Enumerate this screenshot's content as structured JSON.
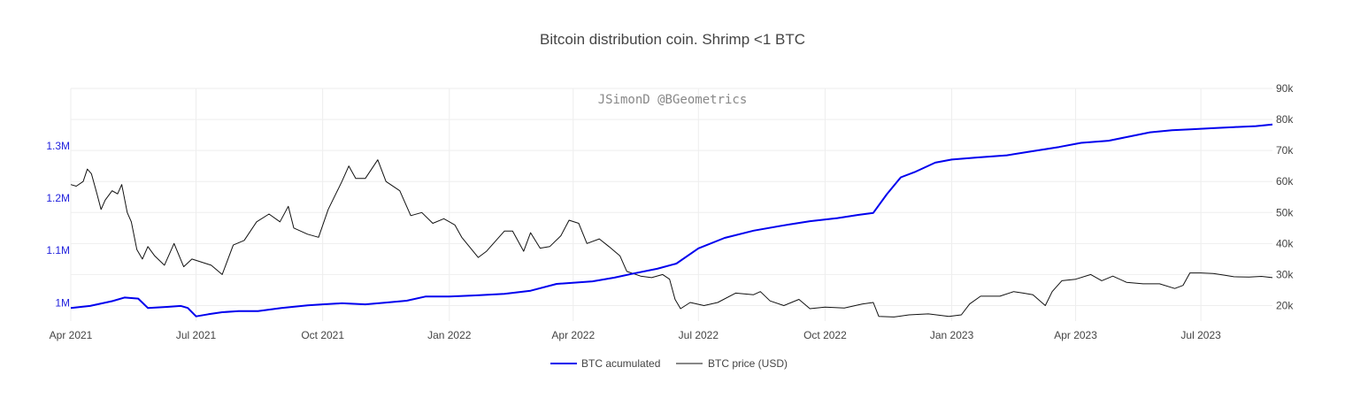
{
  "chart_data": {
    "type": "line",
    "title": "Bitcoin distribution coin. Shrimp <1 BTC",
    "watermark": "JSimonD @BGeometrics",
    "x_range": [
      "2021-04-01",
      "2023-08-22"
    ],
    "x_ticks": [
      {
        "date": "2021-04-01",
        "label": "Apr 2021"
      },
      {
        "date": "2021-07-01",
        "label": "Jul 2021"
      },
      {
        "date": "2021-10-01",
        "label": "Oct 2021"
      },
      {
        "date": "2022-01-01",
        "label": "Jan 2022"
      },
      {
        "date": "2022-04-01",
        "label": "Apr 2022"
      },
      {
        "date": "2022-07-01",
        "label": "Jul 2022"
      },
      {
        "date": "2022-10-01",
        "label": "Oct 2022"
      },
      {
        "date": "2023-01-01",
        "label": "Jan 2023"
      },
      {
        "date": "2023-04-01",
        "label": "Apr 2023"
      },
      {
        "date": "2023-07-01",
        "label": "Jul 2023"
      }
    ],
    "y_left": {
      "range": [
        965000,
        1410000
      ],
      "ticks": [
        {
          "value": 1000000,
          "label": "1M"
        },
        {
          "value": 1100000,
          "label": "1.1M"
        },
        {
          "value": 1200000,
          "label": "1.2M"
        },
        {
          "value": 1300000,
          "label": "1.3M"
        }
      ]
    },
    "y_right": {
      "range": [
        15000,
        90000
      ],
      "ticks": [
        {
          "value": 20000,
          "label": "20k"
        },
        {
          "value": 30000,
          "label": "30k"
        },
        {
          "value": 40000,
          "label": "40k"
        },
        {
          "value": 50000,
          "label": "50k"
        },
        {
          "value": 60000,
          "label": "60k"
        },
        {
          "value": 70000,
          "label": "70k"
        },
        {
          "value": 80000,
          "label": "80k"
        },
        {
          "value": 90000,
          "label": "90k"
        }
      ]
    },
    "grid": true,
    "legend_position": "bottom-center",
    "series": [
      {
        "name": "BTC acumulated",
        "axis": "left",
        "color": "#0000ee",
        "points": [
          [
            "2021-04-01",
            990000
          ],
          [
            "2021-04-15",
            994000
          ],
          [
            "2021-05-01",
            1003000
          ],
          [
            "2021-05-10",
            1010000
          ],
          [
            "2021-05-20",
            1008000
          ],
          [
            "2021-05-27",
            990000
          ],
          [
            "2021-06-10",
            992000
          ],
          [
            "2021-06-20",
            994000
          ],
          [
            "2021-06-25",
            990000
          ],
          [
            "2021-07-01",
            974000
          ],
          [
            "2021-07-10",
            978000
          ],
          [
            "2021-07-20",
            982000
          ],
          [
            "2021-08-01",
            984000
          ],
          [
            "2021-08-15",
            984000
          ],
          [
            "2021-09-01",
            990000
          ],
          [
            "2021-09-20",
            995000
          ],
          [
            "2021-10-01",
            997000
          ],
          [
            "2021-10-15",
            999000
          ],
          [
            "2021-11-01",
            997000
          ],
          [
            "2021-11-15",
            1000000
          ],
          [
            "2021-12-01",
            1004000
          ],
          [
            "2021-12-15",
            1012000
          ],
          [
            "2022-01-01",
            1012000
          ],
          [
            "2022-01-20",
            1014000
          ],
          [
            "2022-02-10",
            1017000
          ],
          [
            "2022-03-01",
            1023000
          ],
          [
            "2022-03-20",
            1036000
          ],
          [
            "2022-04-15",
            1041000
          ],
          [
            "2022-05-01",
            1048000
          ],
          [
            "2022-05-15",
            1056000
          ],
          [
            "2022-06-01",
            1065000
          ],
          [
            "2022-06-15",
            1075000
          ],
          [
            "2022-07-01",
            1104000
          ],
          [
            "2022-07-20",
            1124000
          ],
          [
            "2022-08-10",
            1138000
          ],
          [
            "2022-09-01",
            1148000
          ],
          [
            "2022-09-20",
            1156000
          ],
          [
            "2022-10-10",
            1162000
          ],
          [
            "2022-10-25",
            1168000
          ],
          [
            "2022-11-05",
            1172000
          ],
          [
            "2022-11-15",
            1208000
          ],
          [
            "2022-11-25",
            1240000
          ],
          [
            "2022-12-05",
            1250000
          ],
          [
            "2022-12-20",
            1268000
          ],
          [
            "2023-01-01",
            1274000
          ],
          [
            "2023-01-20",
            1278000
          ],
          [
            "2023-02-10",
            1282000
          ],
          [
            "2023-03-01",
            1290000
          ],
          [
            "2023-03-20",
            1298000
          ],
          [
            "2023-04-05",
            1306000
          ],
          [
            "2023-04-25",
            1310000
          ],
          [
            "2023-05-10",
            1318000
          ],
          [
            "2023-05-25",
            1326000
          ],
          [
            "2023-06-10",
            1330000
          ],
          [
            "2023-06-25",
            1332000
          ],
          [
            "2023-07-10",
            1334000
          ],
          [
            "2023-07-25",
            1336000
          ],
          [
            "2023-08-10",
            1338000
          ],
          [
            "2023-08-22",
            1341000
          ]
        ]
      },
      {
        "name": "BTC price (USD)",
        "axis": "right",
        "color": "#111111",
        "points": [
          [
            "2021-04-01",
            59000
          ],
          [
            "2021-04-05",
            58500
          ],
          [
            "2021-04-10",
            60000
          ],
          [
            "2021-04-13",
            64000
          ],
          [
            "2021-04-16",
            62500
          ],
          [
            "2021-04-20",
            56000
          ],
          [
            "2021-04-23",
            51000
          ],
          [
            "2021-04-26",
            54000
          ],
          [
            "2021-05-01",
            57000
          ],
          [
            "2021-05-05",
            56000
          ],
          [
            "2021-05-08",
            59000
          ],
          [
            "2021-05-12",
            50000
          ],
          [
            "2021-05-15",
            47000
          ],
          [
            "2021-05-19",
            38000
          ],
          [
            "2021-05-23",
            35000
          ],
          [
            "2021-05-27",
            39000
          ],
          [
            "2021-06-01",
            36000
          ],
          [
            "2021-06-08",
            33000
          ],
          [
            "2021-06-15",
            40000
          ],
          [
            "2021-06-22",
            32500
          ],
          [
            "2021-06-28",
            35000
          ],
          [
            "2021-07-05",
            34000
          ],
          [
            "2021-07-12",
            33000
          ],
          [
            "2021-07-20",
            30000
          ],
          [
            "2021-07-28",
            39500
          ],
          [
            "2021-08-05",
            41000
          ],
          [
            "2021-08-14",
            47000
          ],
          [
            "2021-08-23",
            49500
          ],
          [
            "2021-08-31",
            47000
          ],
          [
            "2021-09-06",
            52000
          ],
          [
            "2021-09-10",
            45000
          ],
          [
            "2021-09-20",
            43000
          ],
          [
            "2021-09-28",
            42000
          ],
          [
            "2021-10-05",
            51000
          ],
          [
            "2021-10-15",
            60000
          ],
          [
            "2021-10-20",
            65000
          ],
          [
            "2021-10-25",
            61000
          ],
          [
            "2021-11-01",
            61000
          ],
          [
            "2021-11-10",
            67000
          ],
          [
            "2021-11-16",
            60000
          ],
          [
            "2021-11-26",
            57000
          ],
          [
            "2021-12-04",
            49000
          ],
          [
            "2021-12-12",
            50000
          ],
          [
            "2021-12-20",
            46500
          ],
          [
            "2021-12-28",
            48000
          ],
          [
            "2022-01-05",
            46000
          ],
          [
            "2022-01-10",
            42000
          ],
          [
            "2022-01-22",
            35500
          ],
          [
            "2022-01-28",
            37500
          ],
          [
            "2022-02-10",
            44000
          ],
          [
            "2022-02-16",
            44000
          ],
          [
            "2022-02-24",
            37500
          ],
          [
            "2022-03-01",
            43500
          ],
          [
            "2022-03-08",
            38500
          ],
          [
            "2022-03-15",
            39000
          ],
          [
            "2022-03-23",
            42500
          ],
          [
            "2022-03-29",
            47500
          ],
          [
            "2022-04-05",
            46500
          ],
          [
            "2022-04-11",
            40000
          ],
          [
            "2022-04-20",
            41500
          ],
          [
            "2022-04-27",
            39000
          ],
          [
            "2022-05-05",
            36000
          ],
          [
            "2022-05-10",
            31000
          ],
          [
            "2022-05-20",
            29500
          ],
          [
            "2022-05-28",
            29000
          ],
          [
            "2022-06-05",
            30000
          ],
          [
            "2022-06-10",
            28500
          ],
          [
            "2022-06-14",
            22000
          ],
          [
            "2022-06-18",
            19000
          ],
          [
            "2022-06-25",
            21000
          ],
          [
            "2022-07-05",
            20000
          ],
          [
            "2022-07-15",
            21000
          ],
          [
            "2022-07-28",
            24000
          ],
          [
            "2022-08-10",
            23500
          ],
          [
            "2022-08-15",
            24500
          ],
          [
            "2022-08-22",
            21500
          ],
          [
            "2022-09-01",
            20000
          ],
          [
            "2022-09-12",
            22000
          ],
          [
            "2022-09-20",
            19000
          ],
          [
            "2022-10-01",
            19500
          ],
          [
            "2022-10-15",
            19200
          ],
          [
            "2022-10-28",
            20500
          ],
          [
            "2022-11-05",
            21000
          ],
          [
            "2022-11-09",
            16500
          ],
          [
            "2022-11-20",
            16300
          ],
          [
            "2022-12-01",
            17000
          ],
          [
            "2022-12-15",
            17300
          ],
          [
            "2022-12-30",
            16500
          ],
          [
            "2023-01-08",
            17000
          ],
          [
            "2023-01-14",
            20500
          ],
          [
            "2023-01-22",
            23000
          ],
          [
            "2023-02-05",
            23000
          ],
          [
            "2023-02-15",
            24500
          ],
          [
            "2023-02-22",
            24000
          ],
          [
            "2023-03-01",
            23500
          ],
          [
            "2023-03-10",
            20000
          ],
          [
            "2023-03-15",
            24500
          ],
          [
            "2023-03-22",
            28000
          ],
          [
            "2023-04-01",
            28500
          ],
          [
            "2023-04-12",
            30000
          ],
          [
            "2023-04-20",
            28000
          ],
          [
            "2023-04-28",
            29500
          ],
          [
            "2023-05-08",
            27500
          ],
          [
            "2023-05-20",
            27000
          ],
          [
            "2023-06-01",
            27000
          ],
          [
            "2023-06-12",
            25500
          ],
          [
            "2023-06-18",
            26500
          ],
          [
            "2023-06-23",
            30500
          ],
          [
            "2023-07-01",
            30500
          ],
          [
            "2023-07-10",
            30300
          ],
          [
            "2023-07-18",
            29800
          ],
          [
            "2023-07-25",
            29300
          ],
          [
            "2023-08-05",
            29200
          ],
          [
            "2023-08-14",
            29400
          ],
          [
            "2023-08-22",
            29000
          ]
        ]
      }
    ]
  }
}
